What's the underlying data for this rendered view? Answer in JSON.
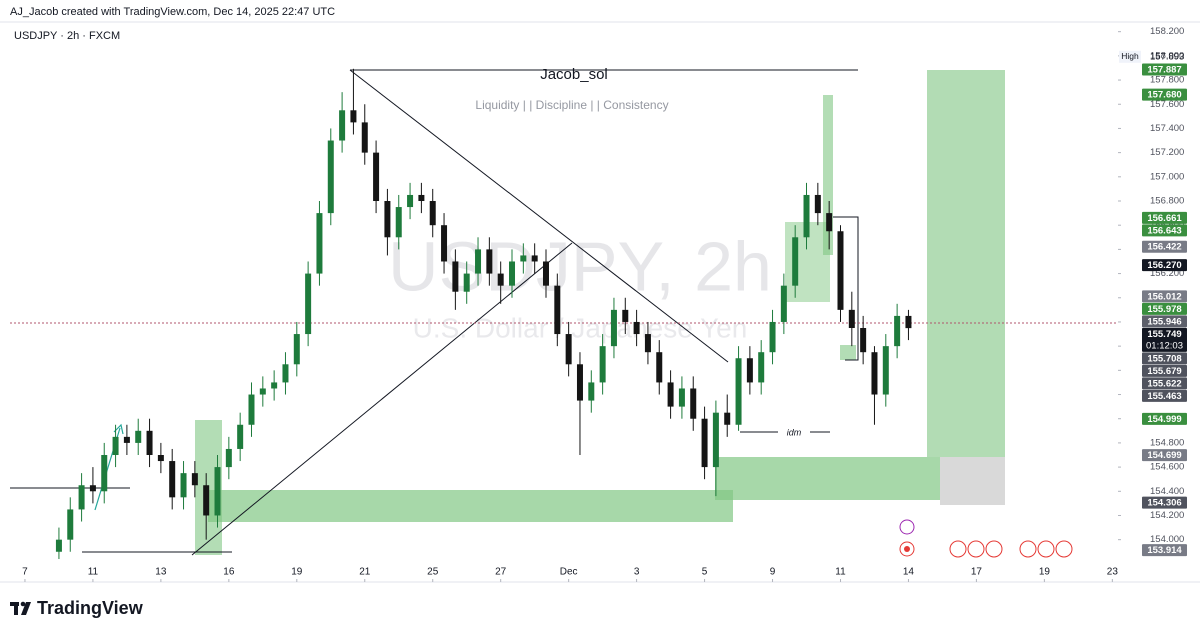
{
  "chart_data": {
    "type": "candlestick",
    "header": "AJ_Jacob created with TradingView.com, Dec 14, 2025 22:47 UTC",
    "title": "USDJPY · 2h · FXCM",
    "watermark": [
      "USDJPY, 2h",
      "U.S. Dollar / Japanese Yen"
    ],
    "annotations": [
      "Jacob_sol",
      "Liquidity | | Discipline | | Consistency",
      "idm"
    ],
    "brand": "TradingView",
    "high_label": "High",
    "up_color": "#1e7b3c",
    "down_color": "#151515",
    "grid": false,
    "x": [
      3,
      4,
      5,
      6,
      7,
      8,
      9,
      10,
      11,
      12,
      13,
      14,
      15,
      16,
      17,
      18,
      19,
      20,
      21,
      22,
      23,
      24,
      25,
      26,
      27,
      28,
      29,
      30,
      31,
      32,
      33,
      34,
      35,
      36,
      37,
      38,
      39,
      40,
      41,
      42,
      43,
      44,
      45,
      46,
      47,
      48,
      49,
      50,
      51,
      52,
      53,
      54,
      55,
      56,
      57,
      58,
      59,
      60,
      61,
      62,
      63,
      64,
      65,
      66,
      67,
      68,
      69,
      70,
      71,
      72,
      73,
      74,
      75,
      76,
      77,
      78
    ],
    "open": [
      153.9,
      154.0,
      154.25,
      154.45,
      154.4,
      154.7,
      154.85,
      154.8,
      154.9,
      154.7,
      154.65,
      154.35,
      154.55,
      154.45,
      154.2,
      154.6,
      154.75,
      154.95,
      155.2,
      155.25,
      155.3,
      155.45,
      155.7,
      156.2,
      156.7,
      157.3,
      157.55,
      157.45,
      157.2,
      156.8,
      156.5,
      156.75,
      156.85,
      156.8,
      156.6,
      156.3,
      156.05,
      156.2,
      156.4,
      156.2,
      156.1,
      156.3,
      156.35,
      156.3,
      156.1,
      155.7,
      155.45,
      155.15,
      155.3,
      155.6,
      155.9,
      155.8,
      155.7,
      155.55,
      155.3,
      155.1,
      155.25,
      155.0,
      154.6,
      155.05,
      154.95,
      155.5,
      155.3,
      155.55,
      155.8,
      156.1,
      156.5,
      156.85,
      156.7,
      156.55,
      155.9,
      155.75,
      155.55,
      155.2,
      155.6,
      155.85
    ],
    "high": [
      154.1,
      154.35,
      154.55,
      154.6,
      154.8,
      154.95,
      154.95,
      155.0,
      155.0,
      154.8,
      154.75,
      154.65,
      154.65,
      154.55,
      154.7,
      154.85,
      155.05,
      155.3,
      155.35,
      155.4,
      155.55,
      155.8,
      156.3,
      156.8,
      157.4,
      157.7,
      157.893,
      157.6,
      157.3,
      156.9,
      156.85,
      156.95,
      156.95,
      156.9,
      156.7,
      156.4,
      156.3,
      156.5,
      156.5,
      156.3,
      156.4,
      156.45,
      156.45,
      156.4,
      156.2,
      155.8,
      155.55,
      155.4,
      155.7,
      156.0,
      156.0,
      155.9,
      155.8,
      155.65,
      155.4,
      155.35,
      155.35,
      155.1,
      155.15,
      155.2,
      155.6,
      155.6,
      155.65,
      155.9,
      156.2,
      156.6,
      156.95,
      156.95,
      156.8,
      156.6,
      156.05,
      155.85,
      155.6,
      155.7,
      155.95,
      155.9
    ],
    "low": [
      153.84,
      153.9,
      154.15,
      154.3,
      154.3,
      154.6,
      154.7,
      154.7,
      154.6,
      154.55,
      154.25,
      154.25,
      154.35,
      154.0,
      154.1,
      154.5,
      154.65,
      154.85,
      155.1,
      155.15,
      155.2,
      155.35,
      155.6,
      156.1,
      156.6,
      157.2,
      157.35,
      157.1,
      156.7,
      156.35,
      156.4,
      156.65,
      156.7,
      156.5,
      156.2,
      155.9,
      155.95,
      156.1,
      156.1,
      155.95,
      156.0,
      156.2,
      156.2,
      156.0,
      155.6,
      155.35,
      154.7,
      155.05,
      155.2,
      155.5,
      155.7,
      155.6,
      155.45,
      155.2,
      155.0,
      155.0,
      154.9,
      154.5,
      154.36,
      154.85,
      154.9,
      155.2,
      155.2,
      155.45,
      155.7,
      156.0,
      156.4,
      156.6,
      156.4,
      155.8,
      155.6,
      155.45,
      154.95,
      155.1,
      155.5,
      155.65
    ],
    "close": [
      154.0,
      154.25,
      154.45,
      154.4,
      154.7,
      154.85,
      154.8,
      154.9,
      154.7,
      154.65,
      154.35,
      154.55,
      154.45,
      154.2,
      154.6,
      154.75,
      154.95,
      155.2,
      155.25,
      155.3,
      155.45,
      155.7,
      156.2,
      156.7,
      157.3,
      157.55,
      157.45,
      157.2,
      156.8,
      156.5,
      156.75,
      156.85,
      156.8,
      156.6,
      156.3,
      156.05,
      156.2,
      156.4,
      156.2,
      156.1,
      156.3,
      156.35,
      156.3,
      156.1,
      155.7,
      155.45,
      155.15,
      155.3,
      155.6,
      155.9,
      155.8,
      155.7,
      155.55,
      155.3,
      155.1,
      155.25,
      155.0,
      154.6,
      155.05,
      154.95,
      155.5,
      155.3,
      155.55,
      155.8,
      156.1,
      156.5,
      156.85,
      156.7,
      156.55,
      155.9,
      155.75,
      155.55,
      155.2,
      155.6,
      155.85,
      155.749
    ],
    "xlim": [
      -1.32,
      96.5
    ],
    "xticks": [
      {
        "value": 0,
        "label": "7"
      },
      {
        "value": 6,
        "label": "11"
      },
      {
        "value": 12,
        "label": "13"
      },
      {
        "value": 18,
        "label": "16"
      },
      {
        "value": 24,
        "label": "19"
      },
      {
        "value": 30,
        "label": "21"
      },
      {
        "value": 36,
        "label": "25"
      },
      {
        "value": 42,
        "label": "27"
      },
      {
        "value": 48,
        "label": "Dec"
      },
      {
        "value": 54,
        "label": "3"
      },
      {
        "value": 60,
        "label": "5"
      },
      {
        "value": 66,
        "label": "9"
      },
      {
        "value": 72,
        "label": "11"
      },
      {
        "value": 78,
        "label": "14"
      },
      {
        "value": 84,
        "label": "17"
      },
      {
        "value": 90,
        "label": "19"
      },
      {
        "value": 96,
        "label": "23"
      }
    ],
    "ylim": [
      153.65,
      158.28
    ],
    "yticks": [
      {
        "value": 154.0,
        "label": "154.000"
      },
      {
        "value": 154.2,
        "label": "154.200"
      },
      {
        "value": 154.4,
        "label": "154.400"
      },
      {
        "value": 154.6,
        "label": "154.600"
      },
      {
        "value": 154.8,
        "label": "154.800"
      },
      {
        "value": 155.0,
        "label": "155.000"
      },
      {
        "value": 155.2,
        "label": "155.200"
      },
      {
        "value": 155.4,
        "label": "155.400"
      },
      {
        "value": 155.6,
        "label": "155.600"
      },
      {
        "value": 155.8,
        "label": "155.800"
      },
      {
        "value": 156.0,
        "label": "156.000"
      },
      {
        "value": 156.2,
        "label": "156.200"
      },
      {
        "value": 156.4,
        "label": "156.400"
      },
      {
        "value": 156.6,
        "label": "156.600"
      },
      {
        "value": 156.8,
        "label": "156.800"
      },
      {
        "value": 157.0,
        "label": "157.000"
      },
      {
        "value": 157.2,
        "label": "157.200"
      },
      {
        "value": 157.4,
        "label": "157.400"
      },
      {
        "value": 157.6,
        "label": "157.600"
      },
      {
        "value": 157.8,
        "label": "157.800"
      },
      {
        "value": 158.0,
        "label": "158.000"
      },
      {
        "value": 158.2,
        "label": "158.200"
      }
    ],
    "high_price": {
      "value": 157.893,
      "label": "157.893"
    },
    "price_labels": [
      {
        "value": 157.887,
        "label": "157.887",
        "color": "#3a8f3f"
      },
      {
        "value": 157.68,
        "label": "157.680",
        "color": "#3a8f3f"
      },
      {
        "value": 156.661,
        "label": "156.661",
        "color": "#3a8f3f"
      },
      {
        "value": 156.643,
        "label": "156.643",
        "color": "#3a8f3f"
      },
      {
        "value": 156.422,
        "label": "156.422",
        "color": "#787b86"
      },
      {
        "value": 156.27,
        "label": "156.270",
        "color": "#131722"
      },
      {
        "value": 156.012,
        "label": "156.012",
        "color": "#787b86"
      },
      {
        "value": 155.978,
        "label": "155.978",
        "color": "#3a8f3f"
      },
      {
        "value": 155.946,
        "label": "155.946",
        "color": "#5d606b"
      },
      {
        "value": 155.749,
        "label": "155.749",
        "color": "#131722",
        "countdown": "01:12:03"
      },
      {
        "value": 155.708,
        "label": "155.708",
        "color": "#50535e"
      },
      {
        "value": 155.679,
        "label": "155.679",
        "color": "#50535e"
      },
      {
        "value": 155.622,
        "label": "155.622",
        "color": "#50535e"
      },
      {
        "value": 155.463,
        "label": "155.463",
        "color": "#50535e"
      },
      {
        "value": 154.999,
        "label": "154.999",
        "color": "#3a8f3f"
      },
      {
        "value": 154.699,
        "label": "154.699",
        "color": "#787b86"
      },
      {
        "value": 154.306,
        "label": "154.306",
        "color": "#50535e"
      },
      {
        "value": 153.914,
        "label": "153.914",
        "color": "#787b86"
      }
    ]
  }
}
